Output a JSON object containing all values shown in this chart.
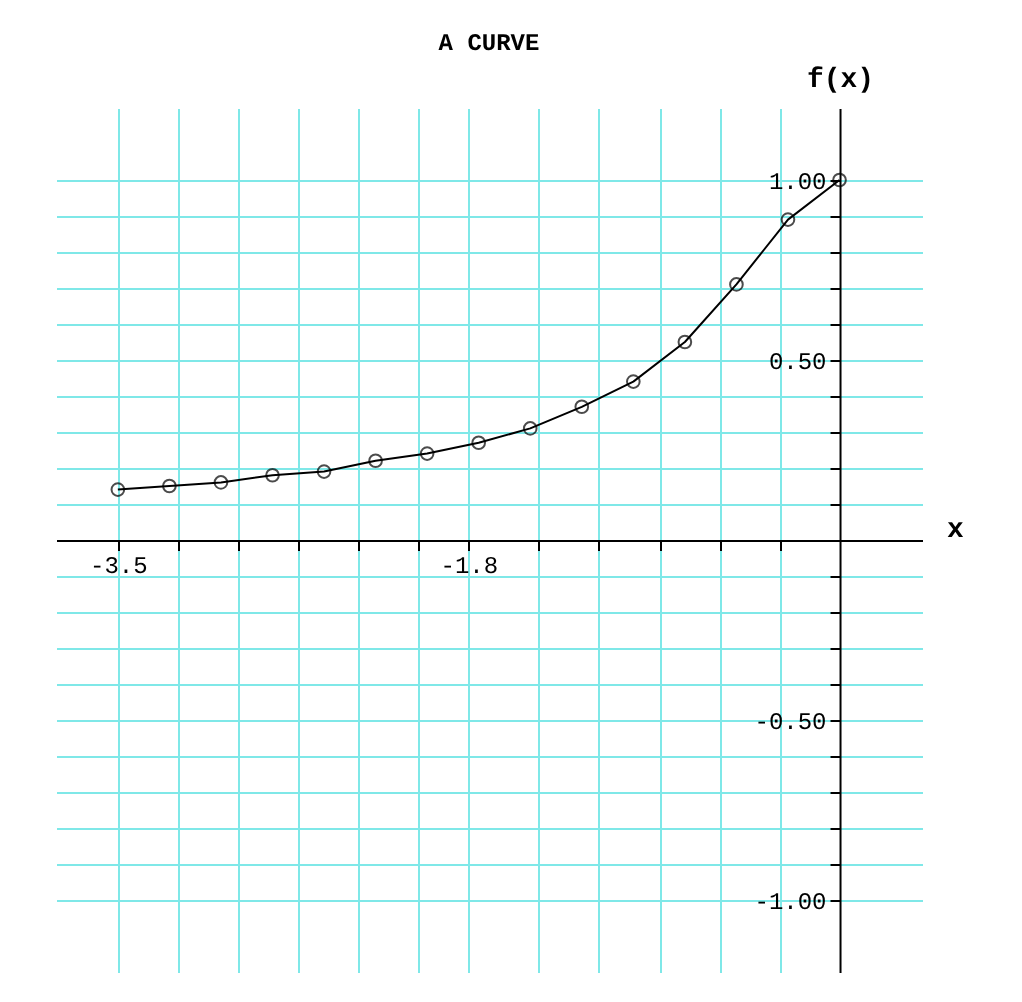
{
  "chart_data": {
    "type": "line",
    "title": "A CURVE",
    "xlabel": "x",
    "ylabel": "f(x)",
    "x": [
      -3.5,
      -3.25,
      -3.0,
      -2.75,
      -2.5,
      -2.25,
      -2.0,
      -1.75,
      -1.5,
      -1.25,
      -1.0,
      -0.75,
      -0.5,
      -0.25,
      0.0
    ],
    "series": [
      {
        "color": "#000000",
        "values": [
          0.14,
          0.15,
          0.16,
          0.18,
          0.19,
          0.22,
          0.24,
          0.27,
          0.31,
          0.37,
          0.44,
          0.55,
          0.71,
          0.89,
          1.0
        ]
      }
    ],
    "xlim": [
      -3.8,
      0.4
    ],
    "ylim": [
      -1.2,
      1.2
    ],
    "xticks": [
      -3.5,
      {
        "value": -3.2083,
        "label": null
      },
      {
        "value": -2.9167,
        "label": null
      },
      {
        "value": -2.625,
        "label": null
      },
      {
        "value": -2.3333,
        "label": null
      },
      {
        "value": -2.0417,
        "label": null
      },
      -1.8,
      {
        "value": -1.4583,
        "label": null
      },
      {
        "value": -1.1667,
        "label": null
      },
      {
        "value": -0.875,
        "label": null
      },
      {
        "value": -0.5833,
        "label": null
      },
      {
        "value": -0.2917,
        "label": null
      }
    ],
    "yticks": [
      {
        "value": -1.0,
        "label": "-1.00"
      },
      {
        "value": -0.9,
        "label": null
      },
      {
        "value": -0.8,
        "label": null
      },
      {
        "value": -0.7,
        "label": null
      },
      {
        "value": -0.6,
        "label": null
      },
      {
        "value": -0.5,
        "label": "-0.50"
      },
      {
        "value": -0.4,
        "label": null
      },
      {
        "value": -0.3,
        "label": null
      },
      {
        "value": -0.2,
        "label": null
      },
      {
        "value": -0.1,
        "label": null
      },
      {
        "value": 0.1,
        "label": null
      },
      {
        "value": 0.2,
        "label": null
      },
      {
        "value": 0.3,
        "label": null
      },
      {
        "value": 0.4,
        "label": null
      },
      {
        "value": 0.5,
        "label": "0.50"
      },
      {
        "value": 0.6,
        "label": null
      },
      {
        "value": 0.7,
        "label": null
      },
      {
        "value": 0.8,
        "label": null
      },
      {
        "value": 0.9,
        "label": null
      },
      {
        "value": 1.0,
        "label": "1.00"
      }
    ],
    "grid": true,
    "marker": "circle",
    "line_style": "solid"
  }
}
